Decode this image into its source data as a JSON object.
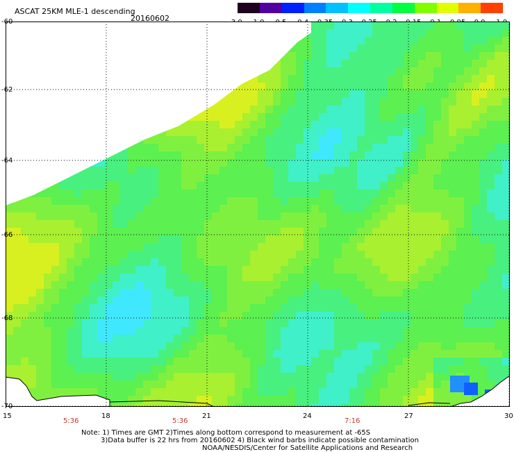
{
  "title": "ASCAT 25KM MLE-1 descending",
  "date": "20160602",
  "colorbar": {
    "ticks": [
      "-3.0",
      "-1.0",
      "-0.5",
      "-0.4",
      "-0.35",
      "-0.3",
      "-0.25",
      "-0.2",
      "-0.15",
      "-0.1",
      "-0.05",
      "0.0",
      "1.0"
    ],
    "colors": [
      "#200020",
      "#5000a0",
      "#0020ff",
      "#0080ff",
      "#00c0ff",
      "#00ffff",
      "#00ffa0",
      "#00ff40",
      "#80ff00",
      "#e0ff00",
      "#ffb000",
      "#ff4000"
    ]
  },
  "map": {
    "lat_labels": [
      "-60",
      "-62",
      "-64",
      "-66",
      "-68",
      "-70"
    ],
    "lon_labels": [
      "15",
      "18",
      "21",
      "24",
      "27",
      "30"
    ],
    "time_labels": [
      "5:36",
      "5:36",
      "7:16"
    ],
    "background_color": "#5cf050"
  },
  "notes": {
    "line1": "Note: 1) Times are GMT 2)Times along bottom correspond to measurement at -65S",
    "line2": "3)Data buffer is 22 hrs from 20160602 4) Black wind barbs indicate possible contamination",
    "line3": "NOAA/NESDIS/Center for Satellite Applications and Research"
  }
}
